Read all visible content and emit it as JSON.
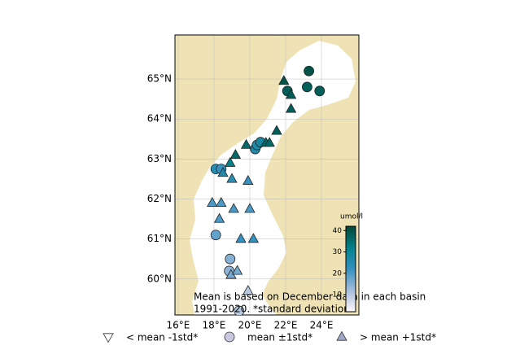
{
  "chart_data": {
    "type": "scatter",
    "xlim": [
      15.82,
      26.09
    ],
    "ylim": [
      59.1,
      66.1
    ],
    "xticks": [
      {
        "value": 16,
        "label": "16°E"
      },
      {
        "value": 18,
        "label": "18°E"
      },
      {
        "value": 20,
        "label": "20°E"
      },
      {
        "value": 22,
        "label": "22°E"
      },
      {
        "value": 24,
        "label": "24°E"
      }
    ],
    "yticks": [
      {
        "value": 60,
        "label": "60°N"
      },
      {
        "value": 61,
        "label": "61°N"
      },
      {
        "value": 62,
        "label": "62°N"
      },
      {
        "value": 63,
        "label": "63°N"
      },
      {
        "value": 64,
        "label": "64°N"
      },
      {
        "value": 65,
        "label": "65°N"
      }
    ],
    "grid": true,
    "annotation": [
      "Mean is based on December data in each basin",
      "1991-2020. *standard deviation"
    ],
    "colorbar": {
      "label": "umol/l",
      "clim": [
        2,
        42
      ],
      "ticks": [
        10,
        20,
        30,
        40
      ],
      "colormap": [
        "#fff7fb",
        "#a6bddb",
        "#3690c0",
        "#02818a",
        "#014636"
      ]
    },
    "series": [
      {
        "name": "< mean -1std*",
        "marker": "triangle-down",
        "x": [],
        "y": [],
        "values": []
      },
      {
        "name": "mean ±1std*",
        "marker": "circle",
        "x": [
          23.3,
          23.2,
          22.1,
          23.9,
          20.3,
          20.4,
          20.6,
          18.1,
          18.4,
          18.1,
          18.9,
          18.85,
          19.4
        ],
        "y": [
          65.2,
          64.8,
          64.7,
          64.7,
          63.25,
          63.35,
          63.42,
          62.75,
          62.75,
          61.1,
          60.5,
          60.2,
          59.2
        ],
        "values": [
          40,
          38,
          38,
          38,
          26,
          27,
          28,
          25,
          22,
          18,
          15,
          14,
          10
        ]
      },
      {
        "name": "> mean +1std*",
        "marker": "triangle-up",
        "x": [
          21.9,
          22.3,
          22.3,
          21.5,
          19.8,
          20.9,
          21.1,
          19.2,
          18.9,
          18.5,
          19.0,
          19.9,
          17.9,
          18.4,
          19.1,
          20.0,
          18.3,
          19.5,
          20.2,
          18.95,
          19.3,
          19.9
        ],
        "y": [
          64.95,
          64.6,
          64.25,
          63.7,
          63.35,
          63.4,
          63.4,
          63.1,
          62.9,
          62.65,
          62.5,
          62.45,
          61.9,
          61.9,
          61.75,
          61.75,
          61.5,
          61.0,
          61.0,
          60.1,
          60.2,
          59.7
        ],
        "values": [
          40,
          38,
          38,
          38,
          36,
          36,
          36,
          36,
          32,
          26,
          24,
          22,
          20,
          20,
          20,
          20,
          20,
          22,
          22,
          16,
          16,
          10
        ]
      }
    ]
  }
}
